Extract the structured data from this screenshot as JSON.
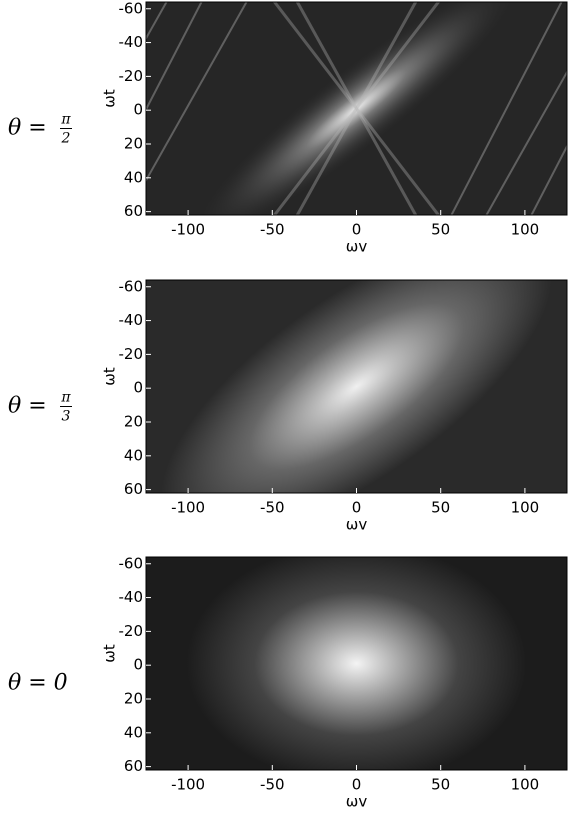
{
  "chart_data": [
    {
      "type": "heatmap",
      "row_label": {
        "lhs": "θ =",
        "num": "π",
        "den": "2"
      },
      "xlabel": "ωv",
      "ylabel": "ωt",
      "xlim": [
        -125,
        125
      ],
      "ylim": [
        -64,
        62
      ],
      "xticks": [
        -100,
        -50,
        0,
        50,
        100
      ],
      "yticks": [
        -60,
        -40,
        -20,
        0,
        20,
        40,
        60
      ],
      "y_inverted": true
    },
    {
      "type": "heatmap",
      "row_label": {
        "lhs": "θ =",
        "num": "π",
        "den": "3"
      },
      "xlabel": "ωv",
      "ylabel": "ωt",
      "xlim": [
        -125,
        125
      ],
      "ylim": [
        -64,
        62
      ],
      "xticks": [
        -100,
        -50,
        0,
        50,
        100
      ],
      "yticks": [
        -60,
        -40,
        -20,
        0,
        20,
        40,
        60
      ],
      "y_inverted": true
    },
    {
      "type": "heatmap",
      "row_label": {
        "lhs": "θ = 0"
      },
      "xlabel": "ωv",
      "ylabel": "ωt",
      "xlim": [
        -125,
        125
      ],
      "ylim": [
        -64,
        62
      ],
      "xticks": [
        -100,
        -50,
        0,
        50,
        100
      ],
      "yticks": [
        -60,
        -40,
        -20,
        0,
        20,
        40,
        60
      ],
      "y_inverted": true
    }
  ]
}
